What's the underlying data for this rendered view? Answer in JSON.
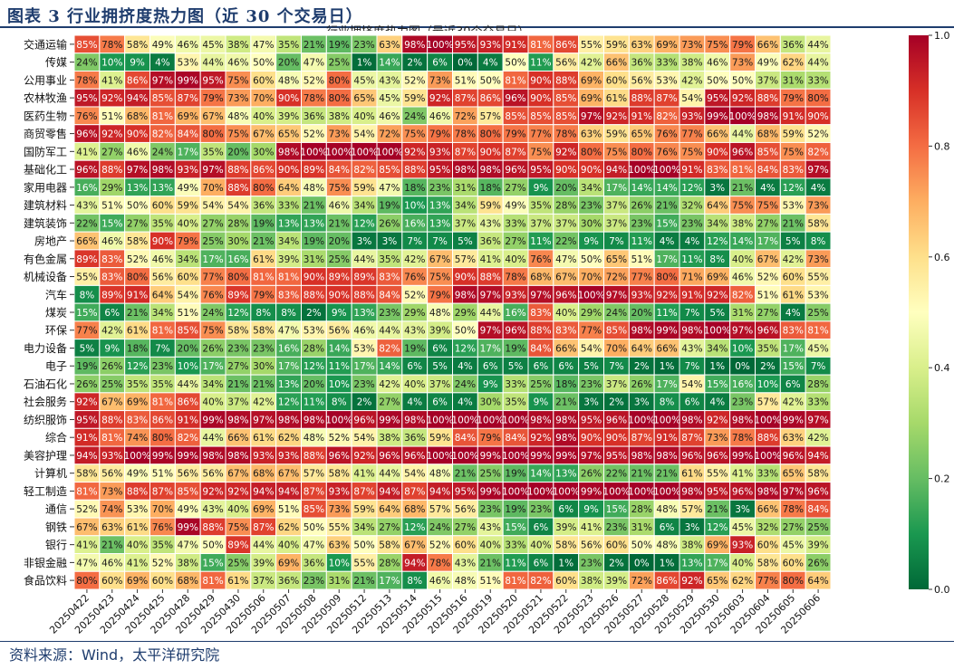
{
  "page": {
    "title": "图表 3  行业拥挤度热力图（近 30 个交易日）",
    "source": "资料来源：Wind，太平洋研究院"
  },
  "chart_data": {
    "type": "heatmap",
    "title": "行业拥挤度热力图（最近30个交易日）",
    "x": [
      "20250422",
      "20250423",
      "20250424",
      "20250425",
      "20250428",
      "20250429",
      "20250430",
      "20250506",
      "20250507",
      "20250508",
      "20250509",
      "20250512",
      "20250513",
      "20250514",
      "20250515",
      "20250516",
      "20250519",
      "20250520",
      "20250521",
      "20250522",
      "20250523",
      "20250526",
      "20250527",
      "20250528",
      "20250529",
      "20250530",
      "20250603",
      "20250604",
      "20250605",
      "20250606"
    ],
    "y": [
      "交通运输",
      "传媒",
      "公用事业",
      "农林牧渔",
      "医药生物",
      "商贸零售",
      "国防军工",
      "基础化工",
      "家用电器",
      "建筑材料",
      "建筑装饰",
      "房地产",
      "有色金属",
      "机械设备",
      "汽车",
      "煤炭",
      "环保",
      "电力设备",
      "电子",
      "石油石化",
      "社会服务",
      "纺织服饰",
      "综合",
      "美容护理",
      "计算机",
      "轻工制造",
      "通信",
      "钢铁",
      "银行",
      "非银金融",
      "食品饮料"
    ],
    "values": [
      [
        85,
        78,
        58,
        49,
        46,
        45,
        38,
        47,
        35,
        21,
        19,
        23,
        63,
        98,
        100,
        95,
        93,
        91,
        81,
        86,
        55,
        59,
        63,
        69,
        73,
        75,
        79,
        66,
        36,
        44
      ],
      [
        24,
        10,
        9,
        4,
        53,
        44,
        46,
        50,
        20,
        47,
        25,
        1,
        14,
        2,
        6,
        0,
        4,
        50,
        11,
        56,
        42,
        66,
        36,
        33,
        38,
        46,
        73,
        49,
        62,
        44
      ],
      [
        78,
        41,
        86,
        97,
        99,
        95,
        75,
        60,
        48,
        52,
        80,
        45,
        43,
        52,
        73,
        51,
        50,
        81,
        90,
        88,
        69,
        60,
        56,
        53,
        42,
        50,
        50,
        37,
        31,
        33
      ],
      [
        95,
        92,
        94,
        85,
        87,
        79,
        73,
        70,
        90,
        78,
        80,
        65,
        45,
        59,
        92,
        87,
        86,
        96,
        90,
        85,
        69,
        61,
        88,
        87,
        54,
        95,
        92,
        88,
        79,
        80
      ],
      [
        76,
        51,
        68,
        81,
        69,
        67,
        48,
        40,
        39,
        36,
        38,
        40,
        46,
        24,
        46,
        72,
        57,
        85,
        85,
        85,
        97,
        92,
        91,
        82,
        93,
        99,
        100,
        98,
        91,
        90
      ],
      [
        96,
        92,
        90,
        82,
        84,
        80,
        75,
        67,
        65,
        52,
        73,
        54,
        72,
        75,
        79,
        78,
        80,
        79,
        77,
        78,
        63,
        59,
        65,
        76,
        77,
        66,
        44,
        68,
        59,
        52
      ],
      [
        41,
        27,
        46,
        24,
        17,
        35,
        20,
        30,
        98,
        100,
        100,
        100,
        100,
        92,
        93,
        87,
        90,
        87,
        75,
        92,
        80,
        75,
        80,
        76,
        75,
        90,
        96,
        85,
        75,
        82
      ],
      [
        96,
        88,
        97,
        98,
        93,
        97,
        88,
        86,
        90,
        89,
        84,
        82,
        85,
        88,
        95,
        98,
        98,
        96,
        95,
        90,
        90,
        94,
        100,
        100,
        91,
        83,
        81,
        84,
        83,
        97
      ],
      [
        16,
        29,
        13,
        13,
        49,
        70,
        88,
        80,
        64,
        48,
        75,
        59,
        47,
        18,
        23,
        31,
        18,
        27,
        9,
        20,
        34,
        17,
        14,
        14,
        12,
        3,
        21,
        4,
        12,
        4
      ],
      [
        43,
        51,
        50,
        60,
        59,
        54,
        54,
        36,
        33,
        21,
        46,
        34,
        19,
        10,
        13,
        34,
        59,
        49,
        35,
        28,
        23,
        37,
        26,
        21,
        32,
        64,
        75,
        75,
        53,
        73
      ],
      [
        22,
        15,
        27,
        35,
        40,
        27,
        28,
        19,
        13,
        13,
        21,
        12,
        26,
        16,
        13,
        37,
        43,
        33,
        37,
        37,
        30,
        37,
        23,
        15,
        23,
        34,
        38,
        27,
        21,
        58
      ],
      [
        66,
        46,
        58,
        90,
        79,
        25,
        30,
        21,
        34,
        19,
        20,
        3,
        3,
        7,
        7,
        5,
        36,
        27,
        11,
        22,
        9,
        7,
        11,
        4,
        4,
        12,
        14,
        17,
        5,
        8
      ],
      [
        89,
        83,
        52,
        46,
        34,
        17,
        16,
        61,
        39,
        31,
        25,
        44,
        35,
        42,
        67,
        57,
        41,
        40,
        76,
        47,
        50,
        65,
        51,
        17,
        11,
        8,
        40,
        67,
        42,
        73
      ],
      [
        55,
        83,
        80,
        56,
        60,
        77,
        80,
        81,
        81,
        90,
        89,
        89,
        83,
        76,
        75,
        90,
        88,
        78,
        68,
        67,
        70,
        72,
        77,
        80,
        71,
        69,
        46,
        52,
        60,
        55
      ],
      [
        8,
        89,
        91,
        64,
        54,
        76,
        89,
        79,
        83,
        88,
        90,
        88,
        84,
        52,
        79,
        98,
        97,
        93,
        97,
        96,
        100,
        97,
        93,
        92,
        91,
        92,
        82,
        51,
        61,
        53
      ],
      [
        15,
        6,
        21,
        34,
        51,
        24,
        12,
        8,
        8,
        2,
        9,
        13,
        23,
        29,
        48,
        29,
        44,
        16,
        83,
        40,
        29,
        24,
        20,
        11,
        7,
        5,
        31,
        27,
        4,
        25
      ],
      [
        77,
        42,
        61,
        81,
        85,
        75,
        58,
        58,
        47,
        53,
        56,
        46,
        44,
        43,
        39,
        50,
        97,
        96,
        88,
        83,
        77,
        85,
        98,
        99,
        98,
        100,
        97,
        96,
        83,
        81
      ],
      [
        5,
        9,
        18,
        7,
        20,
        26,
        23,
        23,
        16,
        28,
        14,
        53,
        82,
        19,
        6,
        12,
        17,
        19,
        84,
        66,
        54,
        70,
        64,
        66,
        43,
        34,
        10,
        35,
        17,
        45
      ],
      [
        19,
        26,
        12,
        23,
        10,
        17,
        27,
        30,
        17,
        12,
        11,
        17,
        14,
        6,
        5,
        4,
        6,
        5,
        6,
        6,
        5,
        7,
        2,
        1,
        7,
        1,
        0,
        2,
        15,
        7
      ],
      [
        26,
        25,
        35,
        35,
        44,
        34,
        21,
        21,
        13,
        20,
        10,
        23,
        42,
        40,
        37,
        24,
        9,
        33,
        25,
        18,
        23,
        37,
        26,
        17,
        54,
        15,
        16,
        10,
        6,
        28
      ],
      [
        92,
        67,
        69,
        81,
        86,
        40,
        37,
        42,
        12,
        11,
        8,
        2,
        27,
        4,
        6,
        4,
        30,
        35,
        9,
        21,
        3,
        2,
        3,
        8,
        6,
        4,
        23,
        57,
        42,
        33
      ],
      [
        95,
        88,
        83,
        86,
        91,
        99,
        98,
        97,
        98,
        98,
        100,
        96,
        99,
        98,
        100,
        100,
        100,
        100,
        98,
        98,
        95,
        96,
        100,
        100,
        98,
        92,
        98,
        100,
        99,
        97
      ],
      [
        91,
        81,
        74,
        80,
        82,
        44,
        66,
        61,
        62,
        48,
        52,
        54,
        38,
        36,
        59,
        84,
        79,
        84,
        92,
        98,
        90,
        90,
        87,
        91,
        87,
        73,
        78,
        88,
        63,
        42
      ],
      [
        94,
        93,
        100,
        99,
        99,
        98,
        98,
        93,
        93,
        88,
        96,
        92,
        96,
        96,
        100,
        100,
        99,
        100,
        99,
        99,
        97,
        95,
        98,
        98,
        96,
        96,
        99,
        100,
        96,
        94
      ],
      [
        58,
        56,
        49,
        51,
        56,
        56,
        67,
        68,
        67,
        57,
        58,
        41,
        44,
        54,
        48,
        21,
        25,
        19,
        14,
        13,
        26,
        22,
        21,
        21,
        61,
        55,
        41,
        33,
        65,
        58
      ],
      [
        81,
        73,
        88,
        87,
        85,
        92,
        92,
        94,
        94,
        87,
        93,
        87,
        94,
        87,
        94,
        95,
        99,
        100,
        100,
        100,
        99,
        100,
        100,
        100,
        98,
        95,
        96,
        98,
        97,
        96
      ],
      [
        52,
        74,
        53,
        70,
        49,
        43,
        40,
        69,
        51,
        85,
        73,
        59,
        64,
        68,
        57,
        56,
        23,
        19,
        23,
        6,
        9,
        15,
        28,
        48,
        57,
        21,
        3,
        66,
        78,
        84
      ],
      [
        67,
        63,
        61,
        76,
        99,
        88,
        75,
        87,
        62,
        50,
        55,
        34,
        27,
        12,
        24,
        27,
        43,
        15,
        6,
        39,
        41,
        23,
        31,
        6,
        3,
        12,
        45,
        32,
        27,
        25
      ],
      [
        41,
        21,
        40,
        35,
        47,
        50,
        89,
        44,
        40,
        47,
        63,
        50,
        58,
        67,
        52,
        60,
        40,
        33,
        40,
        58,
        56,
        60,
        50,
        48,
        38,
        69,
        93,
        60,
        45,
        39
      ],
      [
        47,
        46,
        41,
        52,
        38,
        15,
        25,
        39,
        69,
        36,
        10,
        55,
        28,
        94,
        78,
        43,
        21,
        11,
        6,
        1,
        23,
        2,
        0,
        1,
        13,
        17,
        40,
        58,
        60,
        26
      ],
      [
        80,
        60,
        69,
        60,
        68,
        81,
        61,
        37,
        36,
        23,
        31,
        21,
        17,
        8,
        46,
        48,
        51,
        81,
        82,
        60,
        38,
        39,
        72,
        86,
        92,
        65,
        62,
        77,
        80,
        64
      ]
    ],
    "colorbar": {
      "min": 0.0,
      "max": 1.0,
      "ticks": [
        "0.0",
        "0.2",
        "0.4",
        "0.6",
        "0.8",
        "1.0"
      ],
      "colormap": "RdYlGn_r"
    },
    "value_suffix": "%"
  }
}
